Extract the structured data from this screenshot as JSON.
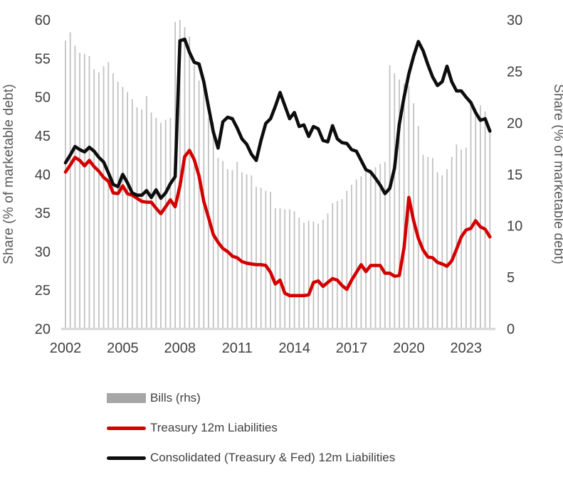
{
  "page": {
    "background": "#ffffff"
  },
  "chart_data": {
    "type": "bar",
    "subtype": "combo-bar-and-lines",
    "title": "",
    "xlabel": "",
    "x_start": 2002.0,
    "x_step": 0.25,
    "x_ticks": [
      2002,
      2005,
      2008,
      2011,
      2014,
      2017,
      2020,
      2023
    ],
    "grid": false,
    "legend_position": "bottom-left",
    "left_axis": {
      "label": "Share (% of marketable debt)",
      "range": [
        20,
        60
      ],
      "ticks": [
        60,
        55,
        50,
        45,
        40,
        35,
        30,
        25,
        20
      ]
    },
    "right_axis": {
      "label": "Share (% of marketable debt)",
      "range": [
        0,
        30
      ],
      "ticks": [
        30,
        25,
        20,
        15,
        10,
        5,
        0
      ]
    },
    "colors": {
      "bar": "#c2c2c2",
      "bar_legend": "#a6a6a6",
      "treasury": "#d40000",
      "consolidated": "#0d0d0d",
      "baseline": "#d9d9d9",
      "tick_text": "#404040",
      "axis_title_text": "#595959"
    },
    "series": [
      {
        "name": "Bills (rhs)",
        "type": "bar",
        "axis": "right",
        "color": "#c2c2c2",
        "legend_color": "#a6a6a6",
        "values": [
          28.0,
          28.8,
          27.5,
          26.8,
          26.7,
          26.5,
          25.2,
          24.9,
          25.5,
          25.9,
          24.8,
          24.0,
          23.5,
          23.0,
          22.3,
          21.5,
          21.3,
          22.6,
          21.0,
          20.5,
          20.0,
          20.3,
          20.5,
          29.8,
          30.0,
          29.3,
          28.4,
          25.6,
          24.1,
          23.8,
          20.5,
          20.1,
          16.6,
          16.3,
          15.5,
          15.4,
          16.2,
          15.2,
          15.0,
          14.9,
          13.8,
          13.7,
          13.4,
          13.3,
          11.7,
          11.7,
          11.6,
          11.6,
          11.4,
          10.8,
          10.3,
          10.5,
          10.4,
          10.2,
          10.6,
          11.2,
          12.2,
          12.4,
          12.6,
          13.4,
          14.0,
          14.5,
          14.8,
          15.8,
          15.5,
          15.7,
          16.0,
          16.2,
          25.6,
          24.8,
          24.2,
          23.8,
          23.6,
          21.9,
          19.7,
          16.9,
          16.7,
          16.6,
          15.2,
          14.9,
          15.5,
          16.7,
          17.9,
          17.4,
          17.6,
          21.8,
          21.4,
          21.7,
          21.1,
          19.4
        ]
      },
      {
        "name": "Treasury 12m Liabilities",
        "type": "line",
        "axis": "left",
        "color": "#d40000",
        "values": [
          40.3,
          41.2,
          42.2,
          41.8,
          41.1,
          41.8,
          41.0,
          40.4,
          39.6,
          39.1,
          37.6,
          37.5,
          38.5,
          37.5,
          37.3,
          36.9,
          36.5,
          36.4,
          36.4,
          35.6,
          34.9,
          35.8,
          36.7,
          35.8,
          38.5,
          42.3,
          43.1,
          41.9,
          39.8,
          36.5,
          34.4,
          32.2,
          31.2,
          30.4,
          30.0,
          29.4,
          29.2,
          28.7,
          28.5,
          28.4,
          28.3,
          28.3,
          28.2,
          27.3,
          25.8,
          26.3,
          24.6,
          24.3,
          24.3,
          24.3,
          24.3,
          24.4,
          26.0,
          26.2,
          25.5,
          26.0,
          26.5,
          26.3,
          25.6,
          25.1,
          26.3,
          27.3,
          28.3,
          27.4,
          28.2,
          28.2,
          28.2,
          27.2,
          27.2,
          26.8,
          26.9,
          30.5,
          37.0,
          34.0,
          31.7,
          30.2,
          29.3,
          29.2,
          28.6,
          28.4,
          28.1,
          28.8,
          30.3,
          31.9,
          32.8,
          33.0,
          34.0,
          33.2,
          32.9,
          31.9
        ]
      },
      {
        "name": "Consolidated (Treasury & Fed) 12m Liabilities",
        "type": "line",
        "axis": "left",
        "color": "#0d0d0d",
        "values": [
          41.5,
          42.5,
          43.6,
          43.2,
          42.9,
          43.5,
          43.0,
          42.2,
          41.6,
          40.2,
          38.7,
          38.4,
          40.0,
          38.9,
          37.6,
          37.3,
          37.3,
          37.9,
          37.0,
          38.0,
          36.9,
          37.6,
          38.8,
          39.7,
          57.3,
          57.5,
          55.8,
          54.5,
          54.3,
          52.0,
          48.7,
          45.5,
          43.4,
          46.8,
          47.4,
          47.2,
          46.0,
          44.6,
          43.9,
          42.6,
          41.8,
          44.4,
          46.6,
          47.2,
          48.8,
          50.6,
          48.9,
          47.2,
          48.0,
          46.2,
          46.4,
          44.9,
          46.2,
          45.9,
          44.4,
          44.2,
          46.3,
          44.6,
          44.1,
          44.0,
          43.2,
          43.0,
          41.8,
          40.6,
          40.3,
          39.5,
          38.6,
          37.5,
          38.2,
          40.8,
          46.5,
          50.0,
          53.0,
          55.3,
          57.2,
          56.0,
          54.2,
          52.6,
          51.5,
          52.0,
          54.0,
          52.0,
          50.8,
          50.8,
          50.0,
          49.3,
          48.0,
          47.0,
          47.2,
          45.6
        ]
      }
    ]
  }
}
